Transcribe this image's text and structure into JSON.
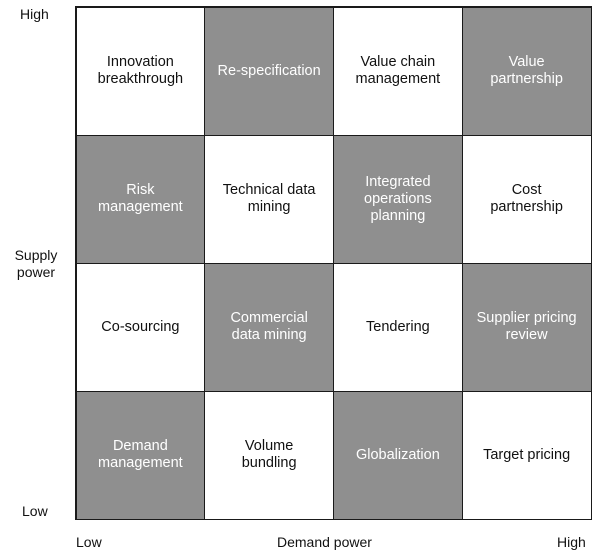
{
  "axes": {
    "y_high": "High",
    "y_title": "Supply power",
    "y_low": "Low",
    "x_low": "Low",
    "x_title": "Demand power",
    "x_high": "High"
  },
  "cells": [
    {
      "label": "Innovation\nbreakthrough",
      "shade": "white"
    },
    {
      "label": "Re-specification",
      "shade": "gray"
    },
    {
      "label": "Value chain\nmanagement",
      "shade": "white"
    },
    {
      "label": "Value\npartnership",
      "shade": "gray"
    },
    {
      "label": "Risk\nmanagement",
      "shade": "gray"
    },
    {
      "label": "Technical data\nmining",
      "shade": "white"
    },
    {
      "label": "Integrated\noperations\nplanning",
      "shade": "gray"
    },
    {
      "label": "Cost\npartnership",
      "shade": "white"
    },
    {
      "label": "Co-sourcing",
      "shade": "white"
    },
    {
      "label": "Commercial\ndata mining",
      "shade": "gray"
    },
    {
      "label": "Tendering",
      "shade": "white"
    },
    {
      "label": "Supplier pricing\nreview",
      "shade": "gray"
    },
    {
      "label": "Demand\nmanagement",
      "shade": "gray"
    },
    {
      "label": "Volume\nbundling",
      "shade": "white"
    },
    {
      "label": "Globalization",
      "shade": "gray"
    },
    {
      "label": "Target pricing",
      "shade": "white"
    }
  ],
  "colors": {
    "gray": "#8f8f8f",
    "white": "#ffffff",
    "border": "#1a1a1a"
  }
}
